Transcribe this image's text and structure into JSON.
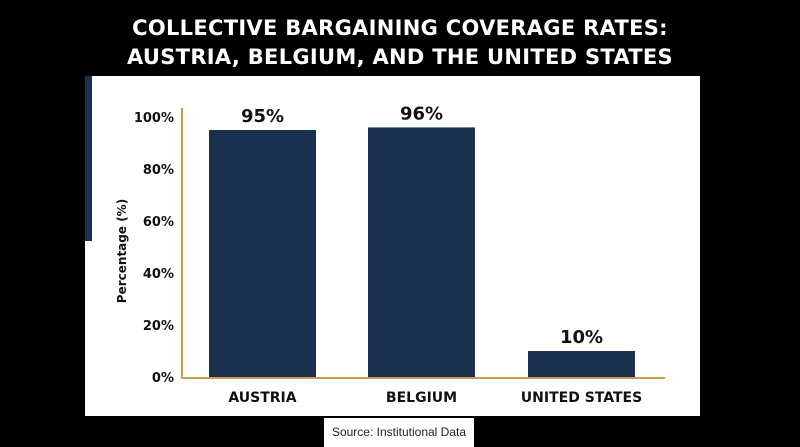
{
  "title": {
    "line1": "COLLECTIVE BARGAINING COVERAGE RATES:",
    "line2": "AUSTRIA, BELGIUM, AND THE UNITED STATES"
  },
  "source": "Source: Institutional Data",
  "colors": {
    "bar": "#1b2f4f",
    "axis": "#c8a04a",
    "panel": "#ffffff",
    "background": "#000000"
  },
  "chart_data": {
    "type": "bar",
    "title": "COLLECTIVE BARGAINING COVERAGE RATES: AUSTRIA, BELGIUM, AND THE UNITED STATES",
    "categories": [
      "AUSTRIA",
      "BELGIUM",
      "UNITED STATES"
    ],
    "values": [
      95,
      96,
      10
    ],
    "data_labels": [
      "95%",
      "96%",
      "10%"
    ],
    "xlabel": "",
    "ylabel": "Percentage (%)",
    "ylim": [
      0,
      100
    ],
    "yticks": [
      0,
      20,
      40,
      60,
      80,
      100
    ],
    "ytick_labels": [
      "0%",
      "20%",
      "40%",
      "60%",
      "80%",
      "100%"
    ],
    "grid": false,
    "legend": "none"
  }
}
